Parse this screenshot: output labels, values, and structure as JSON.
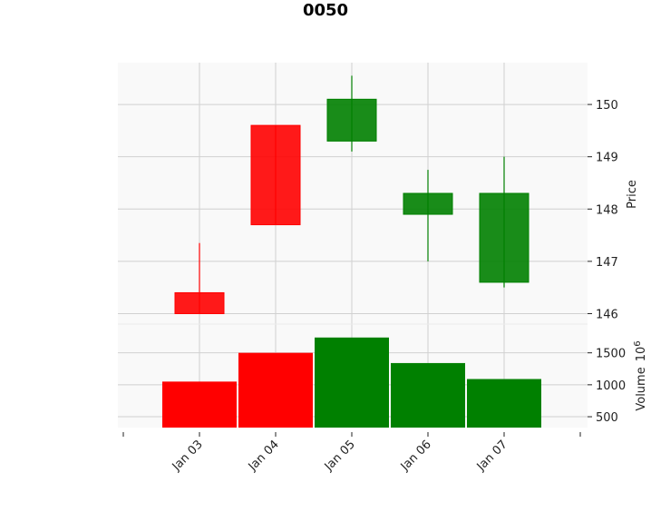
{
  "chart_data": {
    "type": "candlestick",
    "title": "0050",
    "categories": [
      "Jan 03",
      "Jan 04",
      "Jan 05",
      "Jan 06",
      "Jan 07"
    ],
    "ohlc": [
      {
        "open": 146.4,
        "high": 147.35,
        "low": 146.0,
        "close": 146.0
      },
      {
        "open": 149.6,
        "high": 149.6,
        "low": 147.7,
        "close": 147.7
      },
      {
        "open": 149.3,
        "high": 150.55,
        "low": 149.1,
        "close": 150.1
      },
      {
        "open": 147.9,
        "high": 148.75,
        "low": 147.0,
        "close": 148.3
      },
      {
        "open": 146.6,
        "high": 149.0,
        "low": 146.5,
        "close": 148.3
      }
    ],
    "volume": [
      1050,
      1500,
      1740,
      1340,
      1090
    ],
    "price_axis": {
      "label": "Price",
      "ticks": [
        146,
        147,
        148,
        149,
        150
      ],
      "range": [
        145.8,
        150.8
      ]
    },
    "volume_axis": {
      "label": "Volume",
      "multiplier": "10",
      "exponent": "6",
      "ticks": [
        500,
        1000,
        1500
      ],
      "range": [
        330,
        1950
      ]
    },
    "colors": {
      "up": "#008000",
      "down": "#ff0000",
      "panel_bg": "#f9f9f9",
      "grid": "#d0d0d0"
    },
    "grid": true
  }
}
